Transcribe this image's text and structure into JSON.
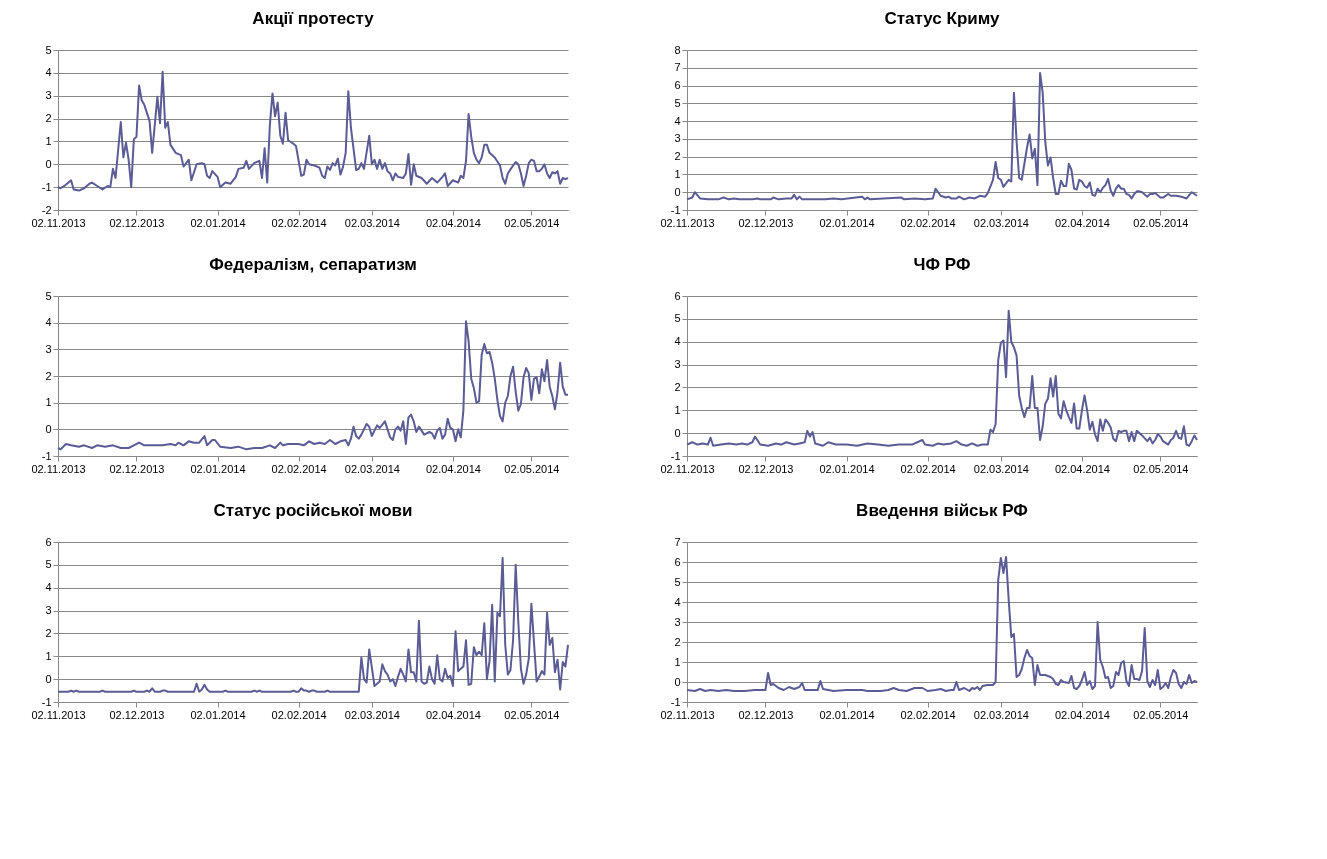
{
  "chart_data": [
    {
      "type": "line",
      "title": "Акції протесту",
      "color": "#5b5b96",
      "grid": "y",
      "ylim": [
        -2,
        5
      ],
      "yticks": [
        -2,
        -1,
        0,
        1,
        2,
        3,
        4,
        5
      ],
      "xlim": [
        "2013-11-02",
        "2014-05-16"
      ],
      "xticks": [
        {
          "value": "2013-11-02",
          "label": "02.11.2013"
        },
        {
          "value": "2013-12-02",
          "label": "02.12.2013"
        },
        {
          "value": "2014-01-02",
          "label": "02.01.2014"
        },
        {
          "value": "2014-02-02",
          "label": "02.02.2014"
        },
        {
          "value": "2014-03-02",
          "label": "02.03.2014"
        },
        {
          "value": "2014-04-02",
          "label": "02.04.2014"
        },
        {
          "value": "2014-05-02",
          "label": "02.05.2014"
        }
      ],
      "x": [
        "2013-11-02",
        "2013-11-03",
        "2013-11-05",
        "2013-11-07",
        "2013-11-08",
        "2013-11-10",
        "2013-11-12",
        "2013-11-14",
        "2013-11-15",
        "2013-11-17",
        "2013-11-19",
        "2013-11-21",
        "2013-11-22",
        "2013-11-23",
        "2013-11-24",
        "2013-11-26",
        "2013-11-27",
        "2013-11-28",
        "2013-11-29",
        "2013-11-30",
        "2013-12-01",
        "2013-12-02",
        "2013-12-03",
        "2013-12-04",
        "2013-12-05",
        "2013-12-07",
        "2013-12-08",
        "2013-12-10",
        "2013-12-11",
        "2013-12-12",
        "2013-12-13",
        "2013-12-14",
        "2013-12-15",
        "2013-12-17",
        "2013-12-19",
        "2013-12-20",
        "2013-12-22",
        "2013-12-23",
        "2013-12-25",
        "2013-12-27",
        "2013-12-28",
        "2013-12-29",
        "2013-12-30",
        "2013-12-31",
        "2014-01-02",
        "2014-01-03",
        "2014-01-05",
        "2014-01-07",
        "2014-01-09",
        "2014-01-10",
        "2014-01-12",
        "2014-01-13",
        "2014-01-14",
        "2014-01-16",
        "2014-01-18",
        "2014-01-19",
        "2014-01-20",
        "2014-01-21",
        "2014-01-22",
        "2014-01-23",
        "2014-01-24",
        "2014-01-25",
        "2014-01-26",
        "2014-01-27",
        "2014-01-28",
        "2014-01-29",
        "2014-01-31",
        "2014-02-01",
        "2014-02-03",
        "2014-02-04",
        "2014-02-05",
        "2014-02-06",
        "2014-02-08",
        "2014-02-10",
        "2014-02-11",
        "2014-02-12",
        "2014-02-13",
        "2014-02-14",
        "2014-02-15",
        "2014-02-16",
        "2014-02-17",
        "2014-02-18",
        "2014-02-19",
        "2014-02-20",
        "2014-02-21",
        "2014-02-22",
        "2014-02-24",
        "2014-02-25",
        "2014-02-26",
        "2014-02-27",
        "2014-03-01",
        "2014-03-02",
        "2014-03-03",
        "2014-03-04",
        "2014-03-05",
        "2014-03-06",
        "2014-03-07",
        "2014-03-08",
        "2014-03-09",
        "2014-03-10",
        "2014-03-11",
        "2014-03-12",
        "2014-03-14",
        "2014-03-15",
        "2014-03-16",
        "2014-03-17",
        "2014-03-18",
        "2014-03-19",
        "2014-03-21",
        "2014-03-23",
        "2014-03-25",
        "2014-03-27",
        "2014-03-29",
        "2014-03-30",
        "2014-03-31",
        "2014-04-02",
        "2014-04-04",
        "2014-04-05",
        "2014-04-06",
        "2014-04-07",
        "2014-04-08",
        "2014-04-09",
        "2014-04-10",
        "2014-04-11",
        "2014-04-12",
        "2014-04-13",
        "2014-04-14",
        "2014-04-15",
        "2014-04-16",
        "2014-04-18",
        "2014-04-20",
        "2014-04-21",
        "2014-04-22",
        "2014-04-23",
        "2014-04-25",
        "2014-04-26",
        "2014-04-27",
        "2014-04-28",
        "2014-04-29",
        "2014-04-30",
        "2014-05-01",
        "2014-05-02",
        "2014-05-03",
        "2014-05-04",
        "2014-05-05",
        "2014-05-06",
        "2014-05-07",
        "2014-05-08",
        "2014-05-09",
        "2014-05-10",
        "2014-05-11",
        "2014-05-12",
        "2014-05-13",
        "2014-05-14",
        "2014-05-15",
        "2014-05-16"
      ],
      "values": [
        -1.0,
        -1.05,
        -0.9,
        -0.7,
        -1.1,
        -1.15,
        -1.05,
        -0.85,
        -0.8,
        -0.95,
        -1.1,
        -0.95,
        -1.0,
        -0.2,
        -0.6,
        1.85,
        0.3,
        0.95,
        0.2,
        -1.0,
        1.1,
        1.2,
        3.45,
        2.8,
        2.6,
        1.9,
        0.5,
        2.95,
        1.8,
        4.05,
        1.6,
        1.85,
        0.85,
        0.5,
        0.4,
        -0.1,
        0.2,
        -0.7,
        0.0,
        0.05,
        0.0,
        -0.5,
        -0.6,
        -0.3,
        -0.55,
        -1.0,
        -0.8,
        -0.85,
        -0.55,
        -0.2,
        -0.15,
        0.15,
        -0.2,
        0.05,
        0.15,
        -0.6,
        0.7,
        -0.8,
        1.7,
        3.1,
        2.1,
        2.7,
        1.25,
        0.9,
        2.25,
        1.05,
        0.9,
        0.8,
        -0.5,
        -0.45,
        0.2,
        0.0,
        -0.05,
        -0.15,
        -0.5,
        -0.6,
        -0.1,
        -0.25,
        0.05,
        -0.05,
        0.25,
        -0.45,
        -0.1,
        0.5,
        3.2,
        1.6,
        -0.25,
        -0.2,
        0.05,
        -0.2,
        1.25,
        0.0,
        0.2,
        -0.2,
        0.2,
        -0.2,
        0.05,
        -0.3,
        -0.4,
        -0.7,
        -0.4,
        -0.55,
        -0.6,
        -0.4,
        0.45,
        -0.9,
        0.0,
        -0.5,
        -0.6,
        -0.85,
        -0.6,
        -0.8,
        -0.55,
        -0.4,
        -0.95,
        -0.7,
        -0.8,
        -0.5,
        -0.6,
        0.15,
        2.2,
        1.2,
        0.5,
        0.2,
        0.05,
        0.3,
        0.85,
        0.85,
        0.5,
        0.3,
        -0.05,
        -0.6,
        -0.85,
        -0.4,
        -0.05,
        0.1,
        0.0,
        -0.4,
        -0.95,
        -0.5,
        0.05,
        0.2,
        0.15,
        -0.3,
        -0.3,
        -0.2,
        0.0,
        -0.4,
        -0.6,
        -0.35,
        -0.4,
        -0.3,
        -0.85,
        -0.6,
        -0.65,
        -0.6
      ]
    },
    {
      "type": "line",
      "title": "Статус Криму",
      "color": "#5b5b96",
      "grid": "y",
      "ylim": [
        -1,
        8
      ],
      "yticks": [
        -1,
        0,
        1,
        2,
        3,
        4,
        5,
        6,
        7,
        8
      ],
      "xlim": [
        "2013-11-02",
        "2014-05-16"
      ],
      "xticks": [
        {
          "value": "2013-11-02",
          "label": "02.11.2013"
        },
        {
          "value": "2013-12-02",
          "label": "02.12.2013"
        },
        {
          "value": "2014-01-02",
          "label": "02.01.2014"
        },
        {
          "value": "2014-02-02",
          "label": "02.02.2014"
        },
        {
          "value": "2014-03-02",
          "label": "02.03.2014"
        },
        {
          "value": "2014-04-02",
          "label": "02.04.2014"
        },
        {
          "value": "2014-05-02",
          "label": "02.05.2014"
        }
      ],
      "x": [
        "2013-11-02",
        "2013-11-04",
        "2013-11-05",
        "2013-11-07",
        "2013-11-10",
        "2013-11-14",
        "2013-11-16",
        "2013-11-18",
        "2013-11-20",
        "2013-11-22",
        "2013-11-27",
        "2013-11-29",
        "2013-11-30",
        "2013-12-04",
        "2013-12-05",
        "2013-12-07",
        "2013-12-10",
        "2013-12-12",
        "2013-12-13",
        "2013-12-14",
        "2013-12-15",
        "2013-12-16",
        "2013-12-20",
        "2013-12-25",
        "2013-12-28",
        "2013-12-31",
        "2014-01-08",
        "2014-01-09",
        "2014-01-10",
        "2014-01-11",
        "2014-01-23",
        "2014-01-24",
        "2014-01-28",
        "2014-02-01",
        "2014-02-04",
        "2014-02-05",
        "2014-02-07",
        "2014-02-09",
        "2014-02-10",
        "2014-02-11",
        "2014-02-13",
        "2014-02-14",
        "2014-02-16",
        "2014-02-18",
        "2014-02-20",
        "2014-02-22",
        "2014-02-24",
        "2014-02-25",
        "2014-02-27",
        "2014-02-28",
        "2014-03-01",
        "2014-03-02",
        "2014-03-03",
        "2014-03-05",
        "2014-03-06",
        "2014-03-07",
        "2014-03-08",
        "2014-03-09",
        "2014-03-10",
        "2014-03-12",
        "2014-03-13",
        "2014-03-14",
        "2014-03-15",
        "2014-03-16",
        "2014-03-17",
        "2014-03-18",
        "2014-03-19",
        "2014-03-20",
        "2014-03-21",
        "2014-03-22",
        "2014-03-23",
        "2014-03-24",
        "2014-03-25",
        "2014-03-26",
        "2014-03-27",
        "2014-03-28",
        "2014-03-29",
        "2014-03-30",
        "2014-03-31",
        "2014-04-01",
        "2014-04-02",
        "2014-04-03",
        "2014-04-04",
        "2014-04-05",
        "2014-04-06",
        "2014-04-07",
        "2014-04-08",
        "2014-04-09",
        "2014-04-10",
        "2014-04-11",
        "2014-04-12",
        "2014-04-13",
        "2014-04-14",
        "2014-04-15",
        "2014-04-16",
        "2014-04-17",
        "2014-04-18",
        "2014-04-19",
        "2014-04-20",
        "2014-04-21",
        "2014-04-22",
        "2014-04-23",
        "2014-04-24",
        "2014-04-25",
        "2014-04-27",
        "2014-04-28",
        "2014-04-29",
        "2014-04-30",
        "2014-05-02",
        "2014-05-03",
        "2014-05-05",
        "2014-05-06",
        "2014-05-08",
        "2014-05-10",
        "2014-05-12",
        "2014-05-14",
        "2014-05-16"
      ],
      "values": [
        -0.4,
        -0.3,
        0.0,
        -0.35,
        -0.4,
        -0.4,
        -0.3,
        -0.4,
        -0.35,
        -0.4,
        -0.4,
        -0.35,
        -0.4,
        -0.4,
        -0.3,
        -0.4,
        -0.35,
        -0.35,
        -0.15,
        -0.4,
        -0.25,
        -0.4,
        -0.4,
        -0.4,
        -0.35,
        -0.4,
        -0.25,
        -0.4,
        -0.3,
        -0.4,
        -0.3,
        -0.4,
        -0.35,
        -0.4,
        -0.35,
        0.2,
        -0.2,
        -0.3,
        -0.25,
        -0.35,
        -0.35,
        -0.25,
        -0.4,
        -0.3,
        -0.35,
        -0.2,
        -0.25,
        -0.05,
        0.7,
        1.7,
        0.8,
        0.7,
        0.3,
        0.7,
        0.6,
        5.6,
        2.9,
        0.8,
        0.7,
        2.5,
        3.25,
        1.9,
        2.45,
        0.4,
        6.7,
        5.6,
        2.8,
        1.5,
        1.95,
        0.8,
        -0.1,
        -0.1,
        0.65,
        0.35,
        0.35,
        1.6,
        1.25,
        0.2,
        0.15,
        0.7,
        0.6,
        0.35,
        0.25,
        0.55,
        -0.15,
        -0.2,
        0.2,
        0.0,
        0.25,
        0.4,
        0.75,
        0.1,
        -0.2,
        0.2,
        0.4,
        0.2,
        0.2,
        -0.1,
        -0.15,
        -0.35,
        -0.1,
        0.05,
        0.05,
        0.0,
        -0.25,
        -0.1,
        -0.1,
        -0.05,
        -0.3,
        -0.3,
        -0.1,
        -0.2,
        -0.2,
        -0.25,
        -0.35,
        0.0,
        -0.2
      ]
    },
    {
      "type": "line",
      "title": "Федералізм, сепаратизм",
      "color": "#5b5b96",
      "grid": "y",
      "ylim": [
        -1,
        5
      ],
      "yticks": [
        -1,
        0,
        1,
        2,
        3,
        4,
        5
      ],
      "xlim": [
        "2013-11-02",
        "2014-05-16"
      ],
      "xticks": [
        {
          "value": "2013-11-02",
          "label": "02.11.2013"
        },
        {
          "value": "2013-12-02",
          "label": "02.12.2013"
        },
        {
          "value": "2014-01-02",
          "label": "02.01.2014"
        },
        {
          "value": "2014-02-02",
          "label": "02.02.2014"
        },
        {
          "value": "2014-03-02",
          "label": "02.03.2014"
        },
        {
          "value": "2014-04-02",
          "label": "02.04.2014"
        },
        {
          "value": "2014-05-02",
          "label": "02.05.2014"
        }
      ],
      "x": [
        "2013-11-02",
        "2013-11-03",
        "2013-11-05",
        "2013-11-07",
        "2013-11-10",
        "2013-11-12",
        "2013-11-15",
        "2013-11-17",
        "2013-11-20",
        "2013-11-23",
        "2013-11-26",
        "2013-11-29",
        "2013-12-01",
        "2013-12-03",
        "2013-12-05",
        "2013-12-08",
        "2013-12-12",
        "2013-12-15",
        "2013-12-17",
        "2013-12-18",
        "2013-12-20",
        "2013-12-22",
        "2013-12-24",
        "2013-12-26",
        "2013-12-28",
        "2013-12-29",
        "2013-12-31",
        "2014-01-01",
        "2014-01-03",
        "2014-01-07",
        "2014-01-10",
        "2014-01-13",
        "2014-01-16",
        "2014-01-19",
        "2014-01-22",
        "2014-01-24",
        "2014-01-26",
        "2014-01-27",
        "2014-01-29",
        "2014-02-02",
        "2014-02-04",
        "2014-02-06",
        "2014-02-08",
        "2014-02-10",
        "2014-02-12",
        "2014-02-14",
        "2014-02-16",
        "2014-02-18",
        "2014-02-20",
        "2014-02-21",
        "2014-02-22",
        "2014-02-23",
        "2014-02-24",
        "2014-02-25",
        "2014-02-26",
        "2014-02-28",
        "2014-03-01",
        "2014-03-02",
        "2014-03-03",
        "2014-03-04",
        "2014-03-05",
        "2014-03-07",
        "2014-03-09",
        "2014-03-10",
        "2014-03-11",
        "2014-03-12",
        "2014-03-13",
        "2014-03-14",
        "2014-03-15",
        "2014-03-16",
        "2014-03-17",
        "2014-03-18",
        "2014-03-19",
        "2014-03-20",
        "2014-03-22",
        "2014-03-24",
        "2014-03-25",
        "2014-03-26",
        "2014-03-27",
        "2014-03-28",
        "2014-03-29",
        "2014-03-30",
        "2014-03-31",
        "2014-04-01",
        "2014-04-02",
        "2014-04-03",
        "2014-04-04",
        "2014-04-05",
        "2014-04-06",
        "2014-04-07",
        "2014-04-08",
        "2014-04-09",
        "2014-04-10",
        "2014-04-11",
        "2014-04-12",
        "2014-04-13",
        "2014-04-14",
        "2014-04-15",
        "2014-04-16",
        "2014-04-17",
        "2014-04-18",
        "2014-04-19",
        "2014-04-20",
        "2014-04-21",
        "2014-04-22",
        "2014-04-23",
        "2014-04-24",
        "2014-04-25",
        "2014-04-26",
        "2014-04-27",
        "2014-04-28",
        "2014-04-29",
        "2014-04-30",
        "2014-05-01",
        "2014-05-02",
        "2014-05-03",
        "2014-05-04",
        "2014-05-05",
        "2014-05-06",
        "2014-05-07",
        "2014-05-08",
        "2014-05-09",
        "2014-05-10",
        "2014-05-11",
        "2014-05-12",
        "2014-05-13",
        "2014-05-14",
        "2014-05-15",
        "2014-05-16"
      ],
      "values": [
        -0.7,
        -0.75,
        -0.55,
        -0.6,
        -0.65,
        -0.6,
        -0.7,
        -0.6,
        -0.65,
        -0.6,
        -0.7,
        -0.7,
        -0.6,
        -0.5,
        -0.6,
        -0.6,
        -0.6,
        -0.55,
        -0.6,
        -0.5,
        -0.6,
        -0.45,
        -0.5,
        -0.5,
        -0.25,
        -0.6,
        -0.4,
        -0.4,
        -0.65,
        -0.7,
        -0.65,
        -0.75,
        -0.7,
        -0.7,
        -0.6,
        -0.7,
        -0.5,
        -0.6,
        -0.55,
        -0.55,
        -0.6,
        -0.45,
        -0.55,
        -0.5,
        -0.55,
        -0.4,
        -0.55,
        -0.45,
        -0.4,
        -0.6,
        -0.35,
        0.1,
        -0.25,
        -0.35,
        -0.2,
        0.2,
        0.1,
        -0.25,
        -0.05,
        0.15,
        0.05,
        0.3,
        -0.3,
        -0.4,
        0.0,
        0.1,
        -0.05,
        0.3,
        -0.55,
        0.45,
        0.55,
        0.3,
        -0.1,
        0.1,
        -0.2,
        -0.1,
        -0.15,
        -0.35,
        -0.05,
        0.05,
        -0.35,
        -0.2,
        0.4,
        0.05,
        0.0,
        -0.45,
        0.0,
        -0.3,
        0.7,
        4.05,
        3.3,
        1.9,
        1.55,
        1.0,
        1.05,
        2.8,
        3.2,
        2.85,
        2.9,
        2.5,
        1.9,
        1.1,
        0.5,
        0.3,
        1.0,
        1.25,
        2.0,
        2.35,
        1.4,
        0.7,
        0.95,
        1.95,
        2.3,
        2.1,
        1.1,
        1.9,
        1.95,
        1.35,
        2.25,
        1.8,
        2.6,
        1.6,
        1.25,
        0.75,
        1.4,
        2.5,
        1.6,
        1.3,
        1.3
      ]
    },
    {
      "type": "line",
      "title": "ЧФ РФ",
      "color": "#5b5b96",
      "grid": "y",
      "ylim": [
        -1,
        6
      ],
      "yticks": [
        -1,
        0,
        1,
        2,
        3,
        4,
        5,
        6
      ],
      "xlim": [
        "2013-11-02",
        "2014-05-16"
      ],
      "xticks": [
        {
          "value": "2013-11-02",
          "label": "02.11.2013"
        },
        {
          "value": "2013-12-02",
          "label": "02.12.2013"
        },
        {
          "value": "2014-01-02",
          "label": "02.01.2014"
        },
        {
          "value": "2014-02-02",
          "label": "02.02.2014"
        },
        {
          "value": "2014-03-02",
          "label": "02.03.2014"
        },
        {
          "value": "2014-04-02",
          "label": "02.04.2014"
        },
        {
          "value": "2014-05-02",
          "label": "02.05.2014"
        }
      ],
      "x": [
        "2013-11-02",
        "2013-11-04",
        "2013-11-06",
        "2013-11-08",
        "2013-11-10",
        "2013-11-11",
        "2013-11-12",
        "2013-11-15",
        "2013-11-18",
        "2013-11-21",
        "2013-11-23",
        "2013-11-25",
        "2013-11-27",
        "2013-11-28",
        "2013-11-30",
        "2013-12-03",
        "2013-12-06",
        "2013-12-08",
        "2013-12-10",
        "2013-12-13",
        "2013-12-15",
        "2013-12-17",
        "2013-12-18",
        "2013-12-19",
        "2013-12-20",
        "2013-12-21",
        "2013-12-24",
        "2013-12-26",
        "2013-12-29",
        "2014-01-02",
        "2014-01-06",
        "2014-01-10",
        "2014-01-14",
        "2014-01-18",
        "2014-01-22",
        "2014-01-27",
        "2014-01-31",
        "2014-02-01",
        "2014-02-04",
        "2014-02-06",
        "2014-02-08",
        "2014-02-11",
        "2014-02-13",
        "2014-02-15",
        "2014-02-17",
        "2014-02-19",
        "2014-02-21",
        "2014-02-23",
        "2014-02-25",
        "2014-02-26",
        "2014-02-27",
        "2014-02-28",
        "2014-03-01",
        "2014-03-02",
        "2014-03-03",
        "2014-03-04",
        "2014-03-05",
        "2014-03-06",
        "2014-03-07",
        "2014-03-08",
        "2014-03-09",
        "2014-03-10",
        "2014-03-11",
        "2014-03-12",
        "2014-03-13",
        "2014-03-14",
        "2014-03-15",
        "2014-03-16",
        "2014-03-17",
        "2014-03-18",
        "2014-03-19",
        "2014-03-20",
        "2014-03-21",
        "2014-03-22",
        "2014-03-23",
        "2014-03-24",
        "2014-03-25",
        "2014-03-26",
        "2014-03-27",
        "2014-03-28",
        "2014-03-29",
        "2014-03-30",
        "2014-03-31",
        "2014-04-01",
        "2014-04-02",
        "2014-04-03",
        "2014-04-04",
        "2014-04-05",
        "2014-04-06",
        "2014-04-07",
        "2014-04-08",
        "2014-04-09",
        "2014-04-10",
        "2014-04-11",
        "2014-04-12",
        "2014-04-13",
        "2014-04-14",
        "2014-04-15",
        "2014-04-16",
        "2014-04-17",
        "2014-04-18",
        "2014-04-19",
        "2014-04-20",
        "2014-04-21",
        "2014-04-22",
        "2014-04-23",
        "2014-04-25",
        "2014-04-27",
        "2014-04-28",
        "2014-04-29",
        "2014-04-30",
        "2014-05-01",
        "2014-05-02",
        "2014-05-03",
        "2014-05-05",
        "2014-05-06",
        "2014-05-07",
        "2014-05-08",
        "2014-05-09",
        "2014-05-10",
        "2014-05-11",
        "2014-05-12",
        "2014-05-13",
        "2014-05-14",
        "2014-05-15",
        "2014-05-16"
      ],
      "values": [
        -0.5,
        -0.4,
        -0.5,
        -0.45,
        -0.5,
        -0.2,
        -0.55,
        -0.5,
        -0.45,
        -0.5,
        -0.45,
        -0.5,
        -0.4,
        -0.15,
        -0.5,
        -0.55,
        -0.45,
        -0.5,
        -0.4,
        -0.5,
        -0.45,
        -0.4,
        0.1,
        -0.15,
        0.05,
        -0.45,
        -0.55,
        -0.4,
        -0.5,
        -0.5,
        -0.55,
        -0.45,
        -0.5,
        -0.55,
        -0.5,
        -0.5,
        -0.3,
        -0.5,
        -0.55,
        -0.45,
        -0.5,
        -0.45,
        -0.35,
        -0.5,
        -0.55,
        -0.45,
        -0.55,
        -0.5,
        -0.5,
        0.15,
        0.05,
        0.4,
        3.2,
        3.95,
        4.05,
        2.45,
        5.35,
        4.0,
        3.75,
        3.4,
        1.65,
        1.1,
        0.7,
        1.1,
        1.1,
        2.5,
        1.1,
        1.1,
        -0.3,
        0.3,
        1.3,
        1.5,
        2.4,
        1.6,
        2.5,
        0.85,
        0.65,
        1.4,
        1.0,
        0.7,
        0.45,
        1.3,
        0.2,
        0.2,
        1.0,
        1.65,
        1.0,
        0.15,
        0.5,
        -0.05,
        -0.35,
        0.6,
        0.1,
        0.6,
        0.45,
        0.25,
        -0.25,
        -0.35,
        0.1,
        0.05,
        0.1,
        0.1,
        -0.35,
        0.05,
        -0.35,
        0.1,
        -0.1,
        -0.35,
        -0.2,
        -0.45,
        -0.3,
        -0.05,
        -0.15,
        -0.35,
        -0.5,
        -0.3,
        -0.2,
        0.1,
        -0.2,
        -0.25,
        0.3,
        -0.5,
        -0.55,
        -0.35,
        -0.1,
        -0.3
      ]
    },
    {
      "type": "line",
      "title": "Статус російської мови",
      "color": "#5b5b96",
      "grid": "y",
      "ylim": [
        -1,
        6
      ],
      "yticks": [
        -1,
        0,
        1,
        2,
        3,
        4,
        5,
        6
      ],
      "xlim": [
        "2013-11-02",
        "2014-05-16"
      ],
      "xticks": [
        {
          "value": "2013-11-02",
          "label": "02.11.2013"
        },
        {
          "value": "2013-12-02",
          "label": "02.12.2013"
        },
        {
          "value": "2014-01-02",
          "label": "02.01.2014"
        },
        {
          "value": "2014-02-02",
          "label": "02.02.2014"
        },
        {
          "value": "2014-03-02",
          "label": "02.03.2014"
        },
        {
          "value": "2014-04-02",
          "label": "02.04.2014"
        },
        {
          "value": "2014-05-02",
          "label": "02.05.2014"
        }
      ],
      "x": [
        "2013-11-02",
        "2013-11-06",
        "2013-11-07",
        "2013-11-08",
        "2013-11-09",
        "2013-11-10",
        "2013-11-18",
        "2013-11-19",
        "2013-11-20",
        "2013-11-30",
        "2013-12-01",
        "2013-12-02",
        "2013-12-05",
        "2013-12-06",
        "2013-12-07",
        "2013-12-08",
        "2013-12-09",
        "2013-12-11",
        "2013-12-12",
        "2013-12-13",
        "2013-12-14",
        "2013-12-24",
        "2013-12-25",
        "2013-12-26",
        "2013-12-27",
        "2013-12-28",
        "2013-12-29",
        "2013-12-30",
        "2014-01-04",
        "2014-01-05",
        "2014-01-06",
        "2014-01-15",
        "2014-01-16",
        "2014-01-17",
        "2014-01-18",
        "2014-01-19",
        "2014-01-30",
        "2014-01-31",
        "2014-02-01",
        "2014-02-02",
        "2014-02-03",
        "2014-02-04",
        "2014-02-05",
        "2014-02-06",
        "2014-02-07",
        "2014-02-08",
        "2014-02-09",
        "2014-02-12",
        "2014-02-13",
        "2014-02-14",
        "2014-02-25",
        "2014-02-26",
        "2014-02-27",
        "2014-02-28",
        "2014-03-01",
        "2014-03-02",
        "2014-03-03",
        "2014-03-04",
        "2014-03-05",
        "2014-03-06",
        "2014-03-07",
        "2014-03-08",
        "2014-03-09",
        "2014-03-10",
        "2014-03-11",
        "2014-03-12",
        "2014-03-13",
        "2014-03-14",
        "2014-03-15",
        "2014-03-16",
        "2014-03-17",
        "2014-03-18",
        "2014-03-19",
        "2014-03-20",
        "2014-03-21",
        "2014-03-22",
        "2014-03-23",
        "2014-03-24",
        "2014-03-25",
        "2014-03-26",
        "2014-03-27",
        "2014-03-28",
        "2014-03-29",
        "2014-03-30",
        "2014-03-31",
        "2014-04-01",
        "2014-04-02",
        "2014-04-03",
        "2014-04-04",
        "2014-04-05",
        "2014-04-06",
        "2014-04-07",
        "2014-04-08",
        "2014-04-09",
        "2014-04-10",
        "2014-04-11",
        "2014-04-12",
        "2014-04-13",
        "2014-04-14",
        "2014-04-15",
        "2014-04-16",
        "2014-04-17",
        "2014-04-18",
        "2014-04-19",
        "2014-04-20",
        "2014-04-21",
        "2014-04-22",
        "2014-04-23",
        "2014-04-24",
        "2014-04-25",
        "2014-04-26",
        "2014-04-27",
        "2014-04-28",
        "2014-04-29",
        "2014-04-30",
        "2014-05-01",
        "2014-05-02",
        "2014-05-03",
        "2014-05-04",
        "2014-05-05",
        "2014-05-06",
        "2014-05-07",
        "2014-05-08",
        "2014-05-09",
        "2014-05-10",
        "2014-05-11",
        "2014-05-12",
        "2014-05-13",
        "2014-05-14",
        "2014-05-15",
        "2014-05-16"
      ],
      "values": [
        -0.55,
        -0.55,
        -0.5,
        -0.55,
        -0.5,
        -0.55,
        -0.55,
        -0.5,
        -0.55,
        -0.55,
        -0.5,
        -0.55,
        -0.55,
        -0.5,
        -0.55,
        -0.4,
        -0.55,
        -0.55,
        -0.5,
        -0.5,
        -0.55,
        -0.55,
        -0.2,
        -0.55,
        -0.45,
        -0.25,
        -0.45,
        -0.55,
        -0.55,
        -0.5,
        -0.55,
        -0.55,
        -0.5,
        -0.55,
        -0.5,
        -0.55,
        -0.55,
        -0.5,
        -0.55,
        -0.55,
        -0.4,
        -0.5,
        -0.5,
        -0.55,
        -0.5,
        -0.5,
        -0.55,
        -0.55,
        -0.5,
        -0.55,
        -0.55,
        0.95,
        0.0,
        -0.15,
        1.3,
        0.5,
        -0.3,
        -0.2,
        -0.1,
        0.65,
        0.35,
        0.2,
        -0.1,
        0.0,
        -0.3,
        0.1,
        0.45,
        0.2,
        -0.1,
        1.3,
        0.3,
        0.3,
        -0.1,
        2.55,
        -0.1,
        -0.2,
        -0.15,
        0.55,
        0.0,
        -0.2,
        1.05,
        0.0,
        -0.1,
        0.45,
        0.05,
        0.15,
        -0.3,
        2.1,
        0.35,
        0.45,
        0.55,
        1.7,
        -0.25,
        -0.2,
        1.4,
        1.05,
        1.2,
        1.05,
        2.45,
        0.0,
        0.8,
        3.25,
        -0.1,
        2.9,
        2.75,
        5.3,
        1.5,
        0.2,
        0.4,
        1.7,
        5.0,
        2.5,
        0.45,
        -0.2,
        0.2,
        0.9,
        3.3,
        1.6,
        -0.1,
        0.1,
        0.35,
        0.2,
        2.9,
        1.5,
        1.8,
        0.3,
        0.85,
        -0.45,
        0.75,
        0.55,
        1.5
      ]
    },
    {
      "type": "line",
      "title": "Введення військ РФ",
      "color": "#5b5b96",
      "grid": "y",
      "ylim": [
        -1,
        7
      ],
      "yticks": [
        -1,
        0,
        1,
        2,
        3,
        4,
        5,
        6,
        7
      ],
      "xlim": [
        "2013-11-02",
        "2014-05-16"
      ],
      "xticks": [
        {
          "value": "2013-11-02",
          "label": "02.11.2013"
        },
        {
          "value": "2013-12-02",
          "label": "02.12.2013"
        },
        {
          "value": "2014-01-02",
          "label": "02.01.2014"
        },
        {
          "value": "2014-02-02",
          "label": "02.02.2014"
        },
        {
          "value": "2014-03-02",
          "label": "02.03.2014"
        },
        {
          "value": "2014-04-02",
          "label": "02.04.2014"
        },
        {
          "value": "2014-05-02",
          "label": "02.05.2014"
        }
      ],
      "x": [
        "2013-11-02",
        "2013-11-05",
        "2013-11-07",
        "2013-11-09",
        "2013-11-11",
        "2013-11-14",
        "2013-11-17",
        "2013-11-20",
        "2013-11-24",
        "2013-11-28",
        "2013-11-30",
        "2013-12-02",
        "2013-12-03",
        "2013-12-04",
        "2013-12-05",
        "2013-12-07",
        "2013-12-09",
        "2013-12-11",
        "2013-12-13",
        "2013-12-15",
        "2013-12-16",
        "2013-12-17",
        "2013-12-20",
        "2013-12-22",
        "2013-12-23",
        "2013-12-24",
        "2013-12-26",
        "2013-12-28",
        "2014-01-02",
        "2014-01-08",
        "2014-01-10",
        "2014-01-15",
        "2014-01-18",
        "2014-01-20",
        "2014-01-22",
        "2014-01-25",
        "2014-01-28",
        "2014-01-31",
        "2014-02-02",
        "2014-02-05",
        "2014-02-07",
        "2014-02-09",
        "2014-02-11",
        "2014-02-12",
        "2014-02-13",
        "2014-02-14",
        "2014-02-16",
        "2014-02-18",
        "2014-02-19",
        "2014-02-20",
        "2014-02-21",
        "2014-02-22",
        "2014-02-23",
        "2014-02-25",
        "2014-02-27",
        "2014-02-28",
        "2014-03-01",
        "2014-03-02",
        "2014-03-03",
        "2014-03-04",
        "2014-03-05",
        "2014-03-06",
        "2014-03-07",
        "2014-03-08",
        "2014-03-09",
        "2014-03-10",
        "2014-03-11",
        "2014-03-12",
        "2014-03-13",
        "2014-03-14",
        "2014-03-15",
        "2014-03-16",
        "2014-03-17",
        "2014-03-18",
        "2014-03-19",
        "2014-03-21",
        "2014-03-22",
        "2014-03-23",
        "2014-03-24",
        "2014-03-25",
        "2014-03-26",
        "2014-03-28",
        "2014-03-29",
        "2014-03-30",
        "2014-03-31",
        "2014-04-01",
        "2014-04-02",
        "2014-04-03",
        "2014-04-04",
        "2014-04-05",
        "2014-04-06",
        "2014-04-07",
        "2014-04-08",
        "2014-04-09",
        "2014-04-10",
        "2014-04-11",
        "2014-04-12",
        "2014-04-13",
        "2014-04-14",
        "2014-04-15",
        "2014-04-16",
        "2014-04-17",
        "2014-04-18",
        "2014-04-19",
        "2014-04-20",
        "2014-04-21",
        "2014-04-22",
        "2014-04-23",
        "2014-04-24",
        "2014-04-25",
        "2014-04-26",
        "2014-04-27",
        "2014-04-28",
        "2014-04-29",
        "2014-04-30",
        "2014-05-01",
        "2014-05-02",
        "2014-05-03",
        "2014-05-04",
        "2014-05-05",
        "2014-05-06",
        "2014-05-07",
        "2014-05-08",
        "2014-05-09",
        "2014-05-10",
        "2014-05-11",
        "2014-05-12",
        "2014-05-13",
        "2014-05-14",
        "2014-05-15",
        "2014-05-16"
      ],
      "values": [
        -0.4,
        -0.45,
        -0.35,
        -0.45,
        -0.4,
        -0.45,
        -0.4,
        -0.45,
        -0.45,
        -0.4,
        -0.4,
        -0.4,
        0.45,
        -0.15,
        -0.1,
        -0.3,
        -0.4,
        -0.25,
        -0.35,
        -0.25,
        -0.05,
        -0.4,
        -0.4,
        -0.4,
        0.05,
        -0.35,
        -0.4,
        -0.45,
        -0.4,
        -0.4,
        -0.45,
        -0.45,
        -0.4,
        -0.3,
        -0.4,
        -0.45,
        -0.3,
        -0.3,
        -0.45,
        -0.4,
        -0.35,
        -0.45,
        -0.4,
        -0.4,
        0.0,
        -0.4,
        -0.3,
        -0.45,
        -0.3,
        -0.35,
        -0.25,
        -0.4,
        -0.2,
        -0.15,
        -0.15,
        0.0,
        5.1,
        6.2,
        5.45,
        6.25,
        4.1,
        2.25,
        2.4,
        0.25,
        0.35,
        0.65,
        1.2,
        1.6,
        1.3,
        1.2,
        -0.15,
        0.85,
        0.35,
        0.35,
        0.35,
        0.25,
        0.15,
        -0.1,
        -0.15,
        0.1,
        0.0,
        -0.05,
        0.3,
        -0.3,
        -0.35,
        -0.2,
        0.1,
        0.5,
        -0.15,
        0.05,
        -0.35,
        -0.2,
        3.0,
        1.1,
        0.75,
        0.2,
        0.25,
        -0.3,
        -0.2,
        0.5,
        0.35,
        0.95,
        1.05,
        0.05,
        -0.2,
        0.85,
        0.15,
        0.15,
        0.1,
        0.55,
        2.7,
        0.05,
        -0.25,
        0.1,
        -0.15,
        0.6,
        -0.35,
        -0.25,
        -0.05,
        -0.3,
        0.25,
        0.6,
        0.45,
        -0.1,
        -0.3,
        0.0,
        -0.1,
        0.35,
        -0.05,
        0.05,
        0.0
      ]
    }
  ]
}
